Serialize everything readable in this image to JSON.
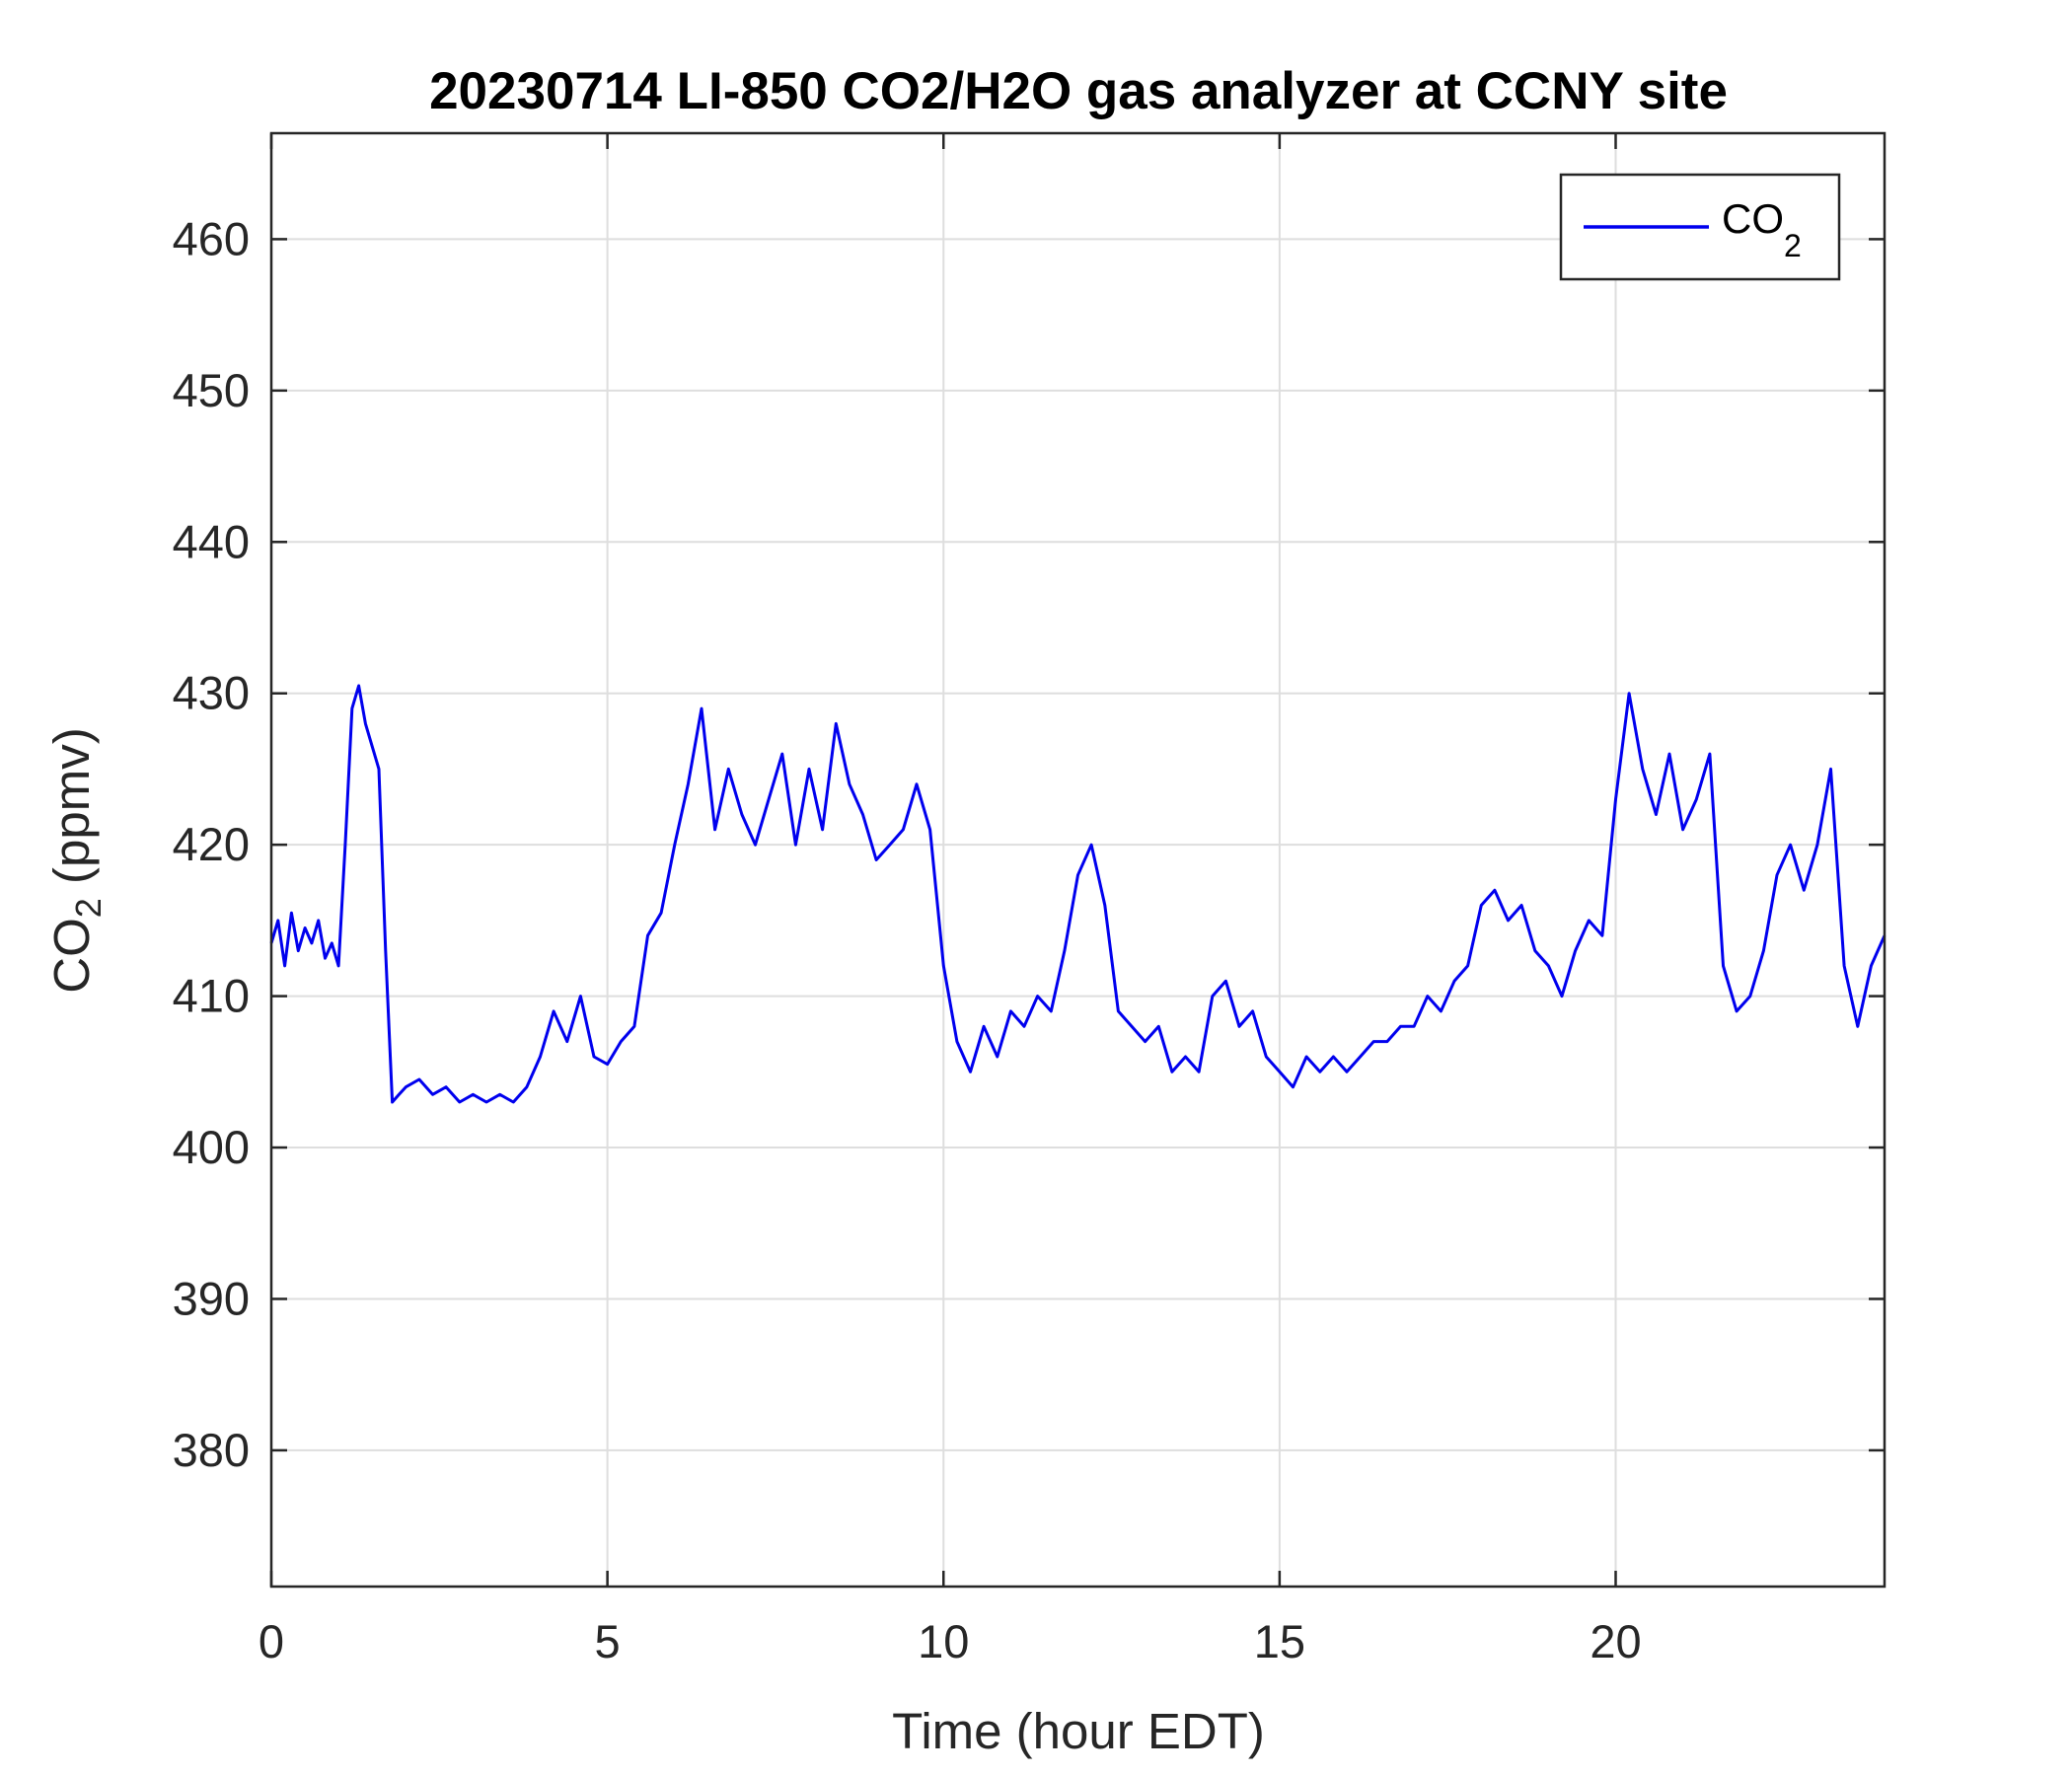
{
  "chart_data": {
    "type": "line",
    "title": "20230714 LI-850 CO2/H2O gas analyzer at CCNY site",
    "xlabel": "Time (hour EDT)",
    "ylabel": {
      "base": "CO",
      "sub": "2",
      "rest": " (ppmv)"
    },
    "xlim": [
      0,
      24
    ],
    "ylim": [
      371,
      467
    ],
    "xticks": [
      0,
      5,
      10,
      15,
      20
    ],
    "yticks": [
      380,
      390,
      400,
      410,
      420,
      430,
      440,
      450,
      460
    ],
    "grid": true,
    "legend_position": "top-right",
    "series": [
      {
        "name": {
          "base": "CO",
          "sub": "2"
        },
        "color": "#0000ee",
        "x": [
          0.0,
          0.1,
          0.2,
          0.3,
          0.4,
          0.5,
          0.6,
          0.7,
          0.8,
          0.9,
          1.0,
          1.1,
          1.2,
          1.3,
          1.4,
          1.5,
          1.6,
          1.7,
          1.8,
          1.9,
          2.0,
          2.2,
          2.4,
          2.6,
          2.8,
          3.0,
          3.2,
          3.4,
          3.6,
          3.8,
          4.0,
          4.2,
          4.4,
          4.6,
          4.8,
          5.0,
          5.2,
          5.4,
          5.6,
          5.8,
          6.0,
          6.2,
          6.4,
          6.6,
          6.8,
          7.0,
          7.2,
          7.4,
          7.6,
          7.8,
          8.0,
          8.2,
          8.4,
          8.6,
          8.8,
          9.0,
          9.2,
          9.4,
          9.6,
          9.8,
          10.0,
          10.2,
          10.4,
          10.6,
          10.8,
          11.0,
          11.2,
          11.4,
          11.6,
          11.8,
          12.0,
          12.2,
          12.4,
          12.6,
          12.8,
          13.0,
          13.2,
          13.4,
          13.6,
          13.8,
          14.0,
          14.2,
          14.4,
          14.6,
          14.8,
          15.0,
          15.2,
          15.4,
          15.6,
          15.8,
          16.0,
          16.2,
          16.4,
          16.6,
          16.8,
          17.0,
          17.2,
          17.4,
          17.6,
          17.8,
          18.0,
          18.2,
          18.4,
          18.6,
          18.8,
          19.0,
          19.2,
          19.4,
          19.6,
          19.8,
          20.0,
          20.2,
          20.4,
          20.6,
          20.8,
          21.0,
          21.2,
          21.4,
          21.6,
          21.8,
          22.0,
          22.2,
          22.4,
          22.6,
          22.8,
          23.0,
          23.2,
          23.4,
          23.6,
          23.8,
          24.0
        ],
        "y": [
          413.5,
          415,
          412,
          415.5,
          413,
          414.5,
          413.5,
          415,
          412.5,
          413.5,
          412,
          420,
          429,
          430.5,
          428,
          426.5,
          425,
          413,
          403,
          403.5,
          404,
          404.5,
          403.5,
          404,
          403,
          403.5,
          403,
          403.5,
          403,
          404,
          406,
          409,
          407,
          410,
          406,
          405.5,
          407,
          408,
          414,
          415.5,
          420,
          424,
          429,
          421,
          425,
          422,
          420,
          423,
          426,
          420,
          425,
          421,
          428,
          424,
          422,
          419,
          420,
          421,
          424,
          421,
          412,
          407,
          405,
          408,
          406,
          409,
          408,
          410,
          409,
          413,
          418,
          420,
          416,
          409,
          408,
          407,
          408,
          405,
          406,
          405,
          410,
          411,
          408,
          409,
          406,
          405,
          404,
          406,
          405,
          406,
          405,
          406,
          407,
          407,
          408,
          408,
          410,
          409,
          411,
          412,
          416,
          417,
          415,
          416,
          413,
          412,
          410,
          413,
          415,
          414,
          423,
          430,
          425,
          422,
          426,
          421,
          423,
          426,
          412,
          409,
          410,
          413,
          418,
          420,
          417,
          420,
          425,
          412,
          408,
          412,
          414
        ]
      }
    ]
  }
}
